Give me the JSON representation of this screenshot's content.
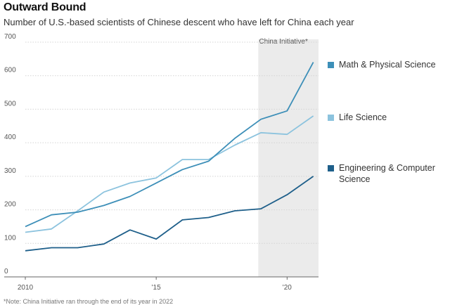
{
  "chart_data": {
    "type": "line",
    "title": "Outward Bound",
    "subtitle": "Number of U.S.-based scientists of Chinese descent who have left for China each year",
    "x": [
      2010,
      2011,
      2012,
      2013,
      2014,
      2015,
      2016,
      2017,
      2018,
      2019,
      2020,
      2021
    ],
    "xtick_labels": [
      "2010",
      "'15",
      "'20"
    ],
    "xtick_values": [
      2010,
      2015,
      2020
    ],
    "yticks": [
      0,
      100,
      200,
      300,
      400,
      500,
      600,
      700
    ],
    "ylim": [
      0,
      700
    ],
    "xlim": [
      2010,
      2021.2
    ],
    "shaded_region": {
      "label": "China Initiative*",
      "start": 2018.9,
      "end": 2021.2
    },
    "series": [
      {
        "name": "Math & Physical Science",
        "color": "#3d8fb8",
        "values": [
          150,
          185,
          193,
          213,
          240,
          280,
          320,
          345,
          413,
          470,
          495,
          640
        ]
      },
      {
        "name": "Life Science",
        "color": "#8cc3de",
        "values": [
          133,
          143,
          197,
          253,
          280,
          295,
          350,
          350,
          393,
          430,
          425,
          480
        ]
      },
      {
        "name": "Engineering & Computer Science",
        "color": "#1e5f8a",
        "values": [
          78,
          87,
          87,
          98,
          140,
          113,
          170,
          177,
          197,
          203,
          245,
          300
        ]
      }
    ],
    "footnote": "*Note: China Initiative ran through the end of its year in 2022"
  }
}
